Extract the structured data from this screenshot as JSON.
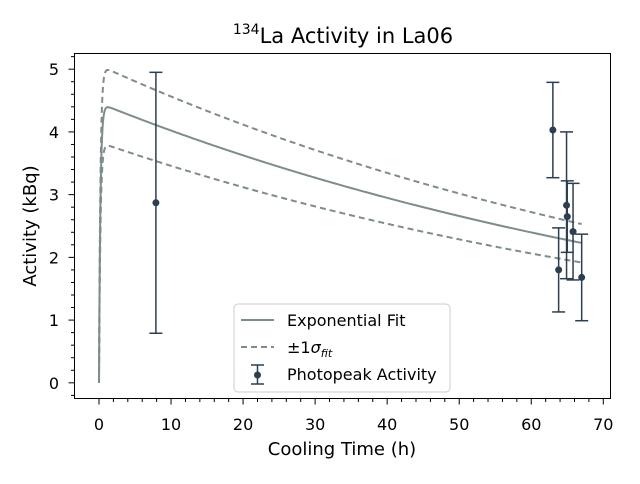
{
  "chart_data": {
    "type": "scatter",
    "title_sup": "134",
    "title_main": "La Activity in La06",
    "xlabel": "Cooling Time (h)",
    "ylabel": "Activity (kBq)",
    "xlim": [
      -3.4,
      71
    ],
    "ylim": [
      -0.25,
      5.25
    ],
    "x_ticks": [
      0,
      10,
      20,
      30,
      40,
      50,
      60,
      70
    ],
    "y_ticks": [
      0,
      1,
      2,
      3,
      4,
      5
    ],
    "grid": false,
    "legend_position": "lower center",
    "colors": {
      "fit": "#7f8c8d",
      "points": "#2c3e50"
    },
    "fit_model": {
      "description": "rise-then-decay",
      "amplitude": 4.46,
      "half_life_h": 67,
      "rise_rate": 5.0,
      "upper_scale": 1.135,
      "lower_scale": 0.86,
      "x_max": 67
    },
    "points": [
      {
        "x": 7.9,
        "y": 2.87,
        "yerr": 2.08
      },
      {
        "x": 63.0,
        "y": 4.03,
        "yerr": 0.76
      },
      {
        "x": 63.8,
        "y": 1.8,
        "yerr": 0.67
      },
      {
        "x": 64.9,
        "y": 2.83,
        "yerr": 1.17
      },
      {
        "x": 65.0,
        "y": 2.65,
        "yerr": 0.57
      },
      {
        "x": 65.8,
        "y": 2.41,
        "yerr": 0.77
      },
      {
        "x": 67.0,
        "y": 1.68,
        "yerr": 0.69
      }
    ],
    "legend": {
      "fit_label": "Exponential Fit",
      "sigma_pm": "±1",
      "sigma_sym": "σ",
      "sigma_sub": "fit",
      "points_label": "Photopeak Activity"
    }
  }
}
